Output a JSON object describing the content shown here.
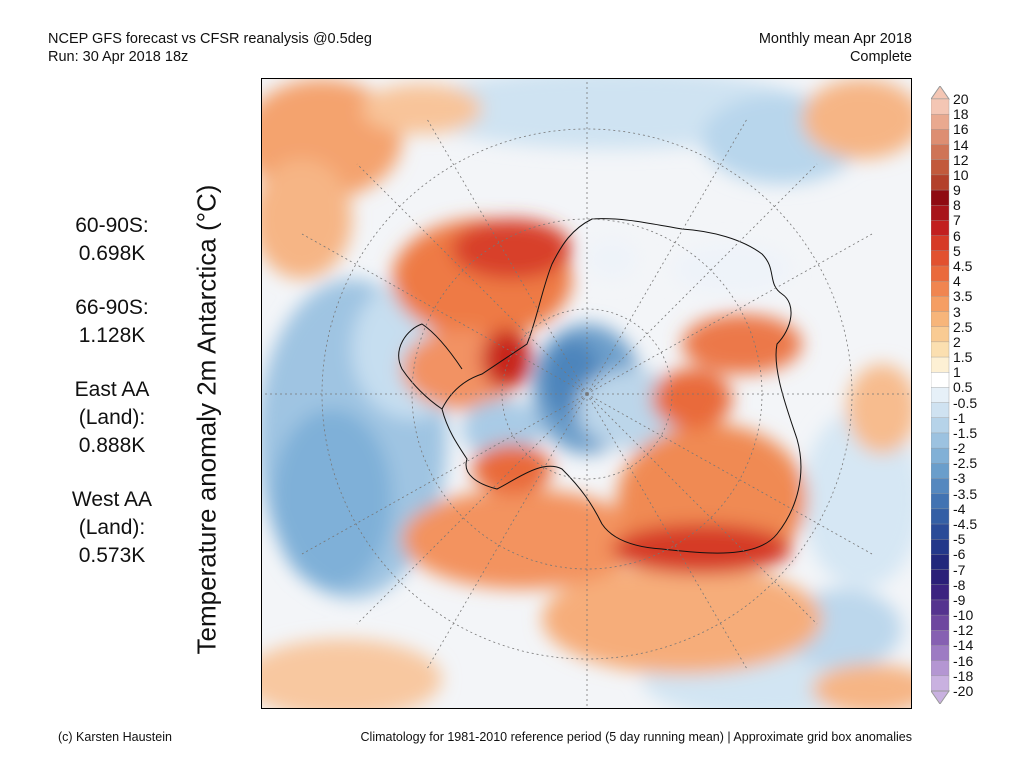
{
  "header": {
    "title_line1": "NCEP GFS forecast vs CFSR reanalysis @0.5deg",
    "title_line2": "Run: 30 Apr 2018 18z",
    "right_line1": "Monthly mean Apr 2018",
    "right_line2": "Complete"
  },
  "y_axis_label": "Temperature anomaly 2m Antarctica (°C)",
  "stats": [
    {
      "lines": [
        "60-90S:",
        "0.698K"
      ]
    },
    {
      "lines": [
        "66-90S:",
        "1.128K"
      ]
    },
    {
      "lines": [
        "East AA",
        "(Land):",
        "0.888K"
      ]
    },
    {
      "lines": [
        "West AA",
        "(Land):",
        "0.573K"
      ]
    }
  ],
  "colorbar": {
    "labels": [
      "20",
      "18",
      "16",
      "14",
      "12",
      "10",
      "9",
      "8",
      "7",
      "6",
      "5",
      "4.5",
      "4",
      "3.5",
      "3",
      "2.5",
      "2",
      "1.5",
      "1",
      "0.5",
      "-0.5",
      "-1",
      "-1.5",
      "-2",
      "-2.5",
      "-3",
      "-3.5",
      "-4",
      "-4.5",
      "-5",
      "-6",
      "-7",
      "-8",
      "-9",
      "-10",
      "-12",
      "-14",
      "-16",
      "-18",
      "-20"
    ],
    "colors": [
      "#f4c6b4",
      "#e9a98f",
      "#dd8e72",
      "#cf7456",
      "#c25a3c",
      "#b3402a",
      "#8f0a12",
      "#a8141a",
      "#c21f1f",
      "#d63a26",
      "#e2512f",
      "#ea6a3c",
      "#f08550",
      "#f59e63",
      "#f7b57a",
      "#f9cb93",
      "#fbdfb0",
      "#fdf0d4",
      "#ffffff",
      "#e6f0f8",
      "#cfe2f1",
      "#b6d3e9",
      "#9cc2e0",
      "#81b0d6",
      "#6a9ecb",
      "#5588bf",
      "#4273b2",
      "#345fa5",
      "#2a4b98",
      "#23388a",
      "#22287c",
      "#2a1f78",
      "#3b2380",
      "#55338f",
      "#6e479f",
      "#8660b2",
      "#9d7bc3",
      "#b496d2",
      "#c9b1e0"
    ]
  },
  "map": {
    "description_colors": {
      "warm": "#e8643c",
      "hot": "#c01a1a",
      "cold": "#6fa3cf",
      "cool": "#bcd7ec",
      "neutral": "#f3f5f8"
    }
  },
  "footer": {
    "left": "(c) Karsten Haustein",
    "right": "Climatology for 1981-2010 reference period (5 day running mean) | Approximate grid box anomalies"
  }
}
